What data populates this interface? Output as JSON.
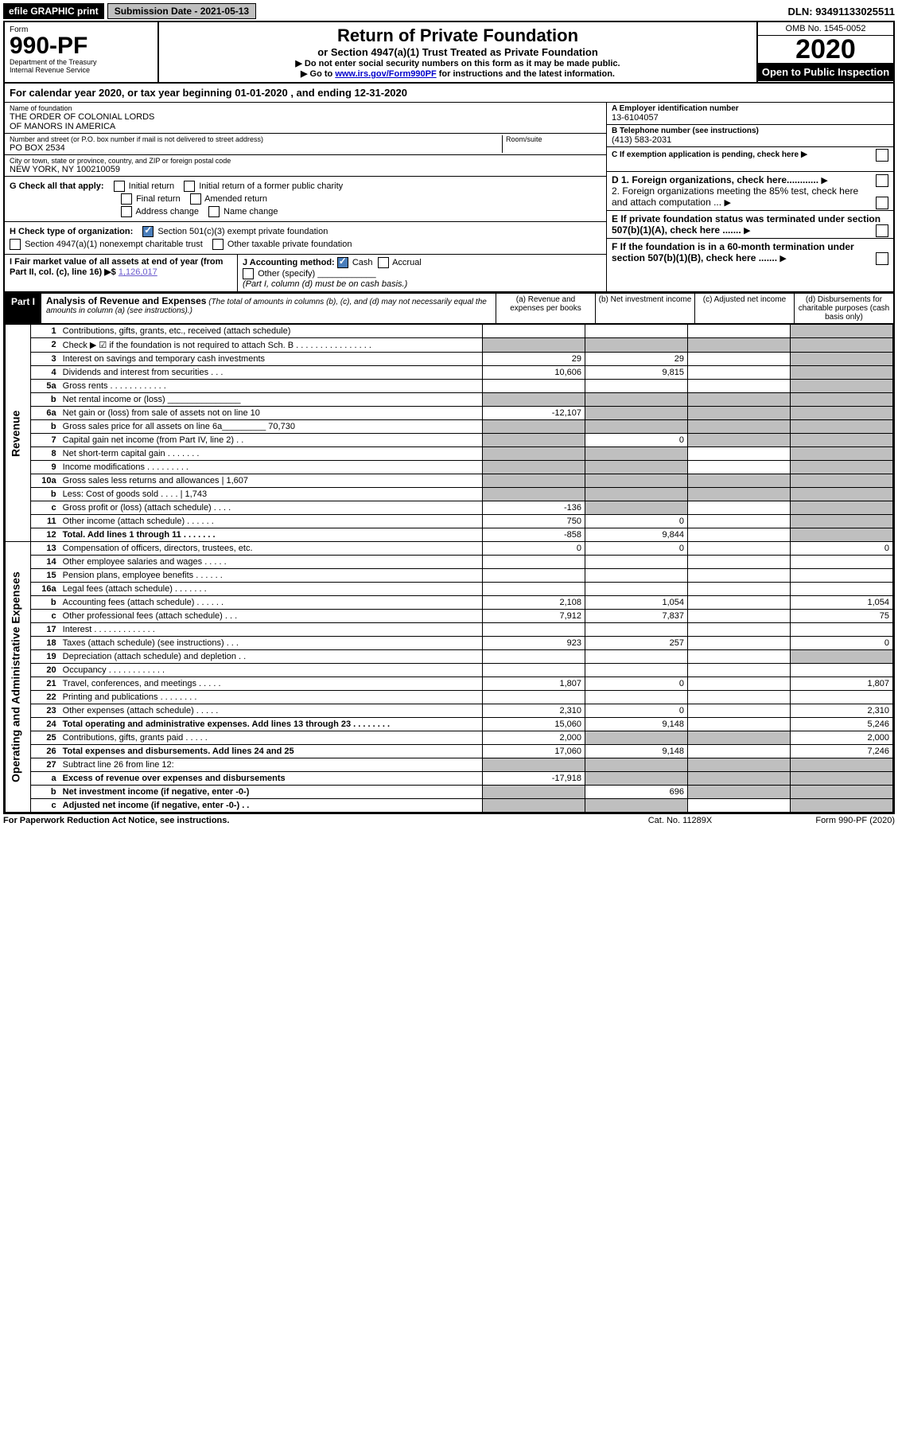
{
  "top": {
    "efile_btn": "efile GRAPHIC print",
    "submission": "Submission Date - 2021-05-13",
    "dln": "DLN: 93491133025511"
  },
  "header": {
    "form_label": "Form",
    "form_number": "990-PF",
    "dept1": "Department of the Treasury",
    "dept2": "Internal Revenue Service",
    "title": "Return of Private Foundation",
    "subtitle": "or Section 4947(a)(1) Trust Treated as Private Foundation",
    "note1": "▶ Do not enter social security numbers on this form as it may be made public.",
    "note2_pre": "▶ Go to ",
    "note2_link": "www.irs.gov/Form990PF",
    "note2_post": " for instructions and the latest information.",
    "omb": "OMB No. 1545-0052",
    "year": "2020",
    "open": "Open to Public Inspection"
  },
  "cal_year": "For calendar year 2020, or tax year beginning 01-01-2020          , and ending 12-31-2020",
  "foundation": {
    "name_label": "Name of foundation",
    "name": "THE ORDER OF COLONIAL LORDS\nOF MANORS IN AMERICA",
    "addr_label": "Number and street (or P.O. box number if mail is not delivered to street address)",
    "addr": "PO BOX 2534",
    "room_label": "Room/suite",
    "city_label": "City or town, state or province, country, and ZIP or foreign postal code",
    "city": "NEW YORK, NY  100210059",
    "ein_label": "A Employer identification number",
    "ein": "13-6104057",
    "phone_label": "B Telephone number (see instructions)",
    "phone": "(413) 583-2031",
    "c_label": "C If exemption application is pending, check here"
  },
  "checks": {
    "g_label": "G Check all that apply:",
    "g1": "Initial return",
    "g2": "Initial return of a former public charity",
    "g3": "Final return",
    "g4": "Amended return",
    "g5": "Address change",
    "g6": "Name change",
    "h_label": "H Check type of organization:",
    "h1": "Section 501(c)(3) exempt private foundation",
    "h2": "Section 4947(a)(1) nonexempt charitable trust",
    "h3": "Other taxable private foundation",
    "i_label": "I Fair market value of all assets at end of year (from Part II, col. (c), line 16) ▶$",
    "i_val": "1,126,017",
    "j_label": "J Accounting method:",
    "j1": "Cash",
    "j2": "Accrual",
    "j3": "Other (specify)",
    "j_note": "(Part I, column (d) must be on cash basis.)",
    "d1": "D 1. Foreign organizations, check here............",
    "d2": "2. Foreign organizations meeting the 85% test, check here and attach computation ...",
    "e": "E  If private foundation status was terminated under section 507(b)(1)(A), check here .......",
    "f": "F  If the foundation is in a 60-month termination under section 507(b)(1)(B), check here ......."
  },
  "part1": {
    "tag": "Part I",
    "title": "Analysis of Revenue and Expenses",
    "title_note": " (The total of amounts in columns (b), (c), and (d) may not necessarily equal the amounts in column (a) (see instructions).)",
    "col_a": "(a)  Revenue and expenses per books",
    "col_b": "(b)  Net investment income",
    "col_c": "(c)  Adjusted net income",
    "col_d": "(d)  Disbursements for charitable purposes (cash basis only)"
  },
  "side": {
    "revenue": "Revenue",
    "expenses": "Operating and Administrative Expenses"
  },
  "lines": [
    {
      "no": "1",
      "desc": "Contributions, gifts, grants, etc., received (attach schedule)",
      "a": "",
      "b": "",
      "c": "",
      "d": "shade"
    },
    {
      "no": "2",
      "desc": "Check ▶ ☑ if the foundation is not required to attach Sch. B   .  .  .  .  .  .  .  .  .  .  .  .  .  .  .  .",
      "a": "shade",
      "b": "shade",
      "c": "shade",
      "d": "shade"
    },
    {
      "no": "3",
      "desc": "Interest on savings and temporary cash investments",
      "a": "29",
      "b": "29",
      "c": "",
      "d": "shade"
    },
    {
      "no": "4",
      "desc": "Dividends and interest from securities   .   .   .",
      "a": "10,606",
      "b": "9,815",
      "c": "",
      "d": "shade"
    },
    {
      "no": "5a",
      "desc": "Gross rents   .   .   .   .   .   .   .   .   .   .   .   .",
      "a": "",
      "b": "",
      "c": "",
      "d": "shade"
    },
    {
      "no": "b",
      "desc": "Net rental income or (loss)  _______________",
      "a": "shade",
      "b": "shade",
      "c": "shade",
      "d": "shade"
    },
    {
      "no": "6a",
      "desc": "Net gain or (loss) from sale of assets not on line 10",
      "a": "-12,107",
      "b": "shade",
      "c": "shade",
      "d": "shade"
    },
    {
      "no": "b",
      "desc": "Gross sales price for all assets on line 6a_________  70,730",
      "a": "shade",
      "b": "shade",
      "c": "shade",
      "d": "shade"
    },
    {
      "no": "7",
      "desc": "Capital gain net income (from Part IV, line 2)   .   .",
      "a": "shade",
      "b": "0",
      "c": "shade",
      "d": "shade"
    },
    {
      "no": "8",
      "desc": "Net short-term capital gain   .   .   .   .   .   .   .",
      "a": "shade",
      "b": "shade",
      "c": "",
      "d": "shade"
    },
    {
      "no": "9",
      "desc": "Income modifications   .   .   .   .   .   .   .   .   .",
      "a": "shade",
      "b": "shade",
      "c": "",
      "d": "shade"
    },
    {
      "no": "10a",
      "desc": "Gross sales less returns and allowances   | 1,607",
      "a": "shade",
      "b": "shade",
      "c": "shade",
      "d": "shade"
    },
    {
      "no": "b",
      "desc": "Less: Cost of goods sold   .   .   .   .   | 1,743",
      "a": "shade",
      "b": "shade",
      "c": "shade",
      "d": "shade"
    },
    {
      "no": "c",
      "desc": "Gross profit or (loss) (attach schedule)   .   .   .   .",
      "a": "-136",
      "b": "shade",
      "c": "",
      "d": "shade"
    },
    {
      "no": "11",
      "desc": "Other income (attach schedule)   .   .   .   .   .   .",
      "a": "750",
      "b": "0",
      "c": "",
      "d": "shade"
    },
    {
      "no": "12",
      "desc": "Total. Add lines 1 through 11   .   .   .   .   .   .   .",
      "a": "-858",
      "b": "9,844",
      "c": "",
      "d": "shade",
      "bold": true
    },
    {
      "no": "13",
      "desc": "Compensation of officers, directors, trustees, etc.",
      "a": "0",
      "b": "0",
      "c": "",
      "d": "0"
    },
    {
      "no": "14",
      "desc": "Other employee salaries and wages   .   .   .   .   .",
      "a": "",
      "b": "",
      "c": "",
      "d": ""
    },
    {
      "no": "15",
      "desc": "Pension plans, employee benefits   .   .   .   .   .   .",
      "a": "",
      "b": "",
      "c": "",
      "d": ""
    },
    {
      "no": "16a",
      "desc": "Legal fees (attach schedule)   .   .   .   .   .   .   .",
      "a": "",
      "b": "",
      "c": "",
      "d": ""
    },
    {
      "no": "b",
      "desc": "Accounting fees (attach schedule)   .   .   .   .   .   .",
      "a": "2,108",
      "b": "1,054",
      "c": "",
      "d": "1,054"
    },
    {
      "no": "c",
      "desc": "Other professional fees (attach schedule)   .   .   .",
      "a": "7,912",
      "b": "7,837",
      "c": "",
      "d": "75"
    },
    {
      "no": "17",
      "desc": "Interest   .   .   .   .   .   .   .   .   .   .   .   .   .",
      "a": "",
      "b": "",
      "c": "",
      "d": ""
    },
    {
      "no": "18",
      "desc": "Taxes (attach schedule) (see instructions)   .   .   .",
      "a": "923",
      "b": "257",
      "c": "",
      "d": "0"
    },
    {
      "no": "19",
      "desc": "Depreciation (attach schedule) and depletion   .   .",
      "a": "",
      "b": "",
      "c": "",
      "d": "shade"
    },
    {
      "no": "20",
      "desc": "Occupancy   .   .   .   .   .   .   .   .   .   .   .   .",
      "a": "",
      "b": "",
      "c": "",
      "d": ""
    },
    {
      "no": "21",
      "desc": "Travel, conferences, and meetings   .   .   .   .   .",
      "a": "1,807",
      "b": "0",
      "c": "",
      "d": "1,807"
    },
    {
      "no": "22",
      "desc": "Printing and publications   .   .   .   .   .   .   .   .",
      "a": "",
      "b": "",
      "c": "",
      "d": ""
    },
    {
      "no": "23",
      "desc": "Other expenses (attach schedule)   .   .   .   .   .",
      "a": "2,310",
      "b": "0",
      "c": "",
      "d": "2,310"
    },
    {
      "no": "24",
      "desc": "Total operating and administrative expenses. Add lines 13 through 23   .   .   .   .   .   .   .   .",
      "a": "15,060",
      "b": "9,148",
      "c": "",
      "d": "5,246",
      "bold": true
    },
    {
      "no": "25",
      "desc": "Contributions, gifts, grants paid   .   .   .   .   .",
      "a": "2,000",
      "b": "shade",
      "c": "shade",
      "d": "2,000"
    },
    {
      "no": "26",
      "desc": "Total expenses and disbursements. Add lines 24 and 25",
      "a": "17,060",
      "b": "9,148",
      "c": "",
      "d": "7,246",
      "bold": true
    },
    {
      "no": "27",
      "desc": "Subtract line 26 from line 12:",
      "a": "shade",
      "b": "shade",
      "c": "shade",
      "d": "shade"
    },
    {
      "no": "a",
      "desc": "Excess of revenue over expenses and disbursements",
      "a": "-17,918",
      "b": "shade",
      "c": "shade",
      "d": "shade",
      "bold": true
    },
    {
      "no": "b",
      "desc": "Net investment income (if negative, enter -0-)",
      "a": "shade",
      "b": "696",
      "c": "shade",
      "d": "shade",
      "bold": true
    },
    {
      "no": "c",
      "desc": "Adjusted net income (if negative, enter -0-)   .   .",
      "a": "shade",
      "b": "shade",
      "c": "",
      "d": "shade",
      "bold": true
    }
  ],
  "footer": {
    "left": "For Paperwork Reduction Act Notice, see instructions.",
    "mid": "Cat. No. 11289X",
    "right": "Form 990-PF (2020)"
  }
}
